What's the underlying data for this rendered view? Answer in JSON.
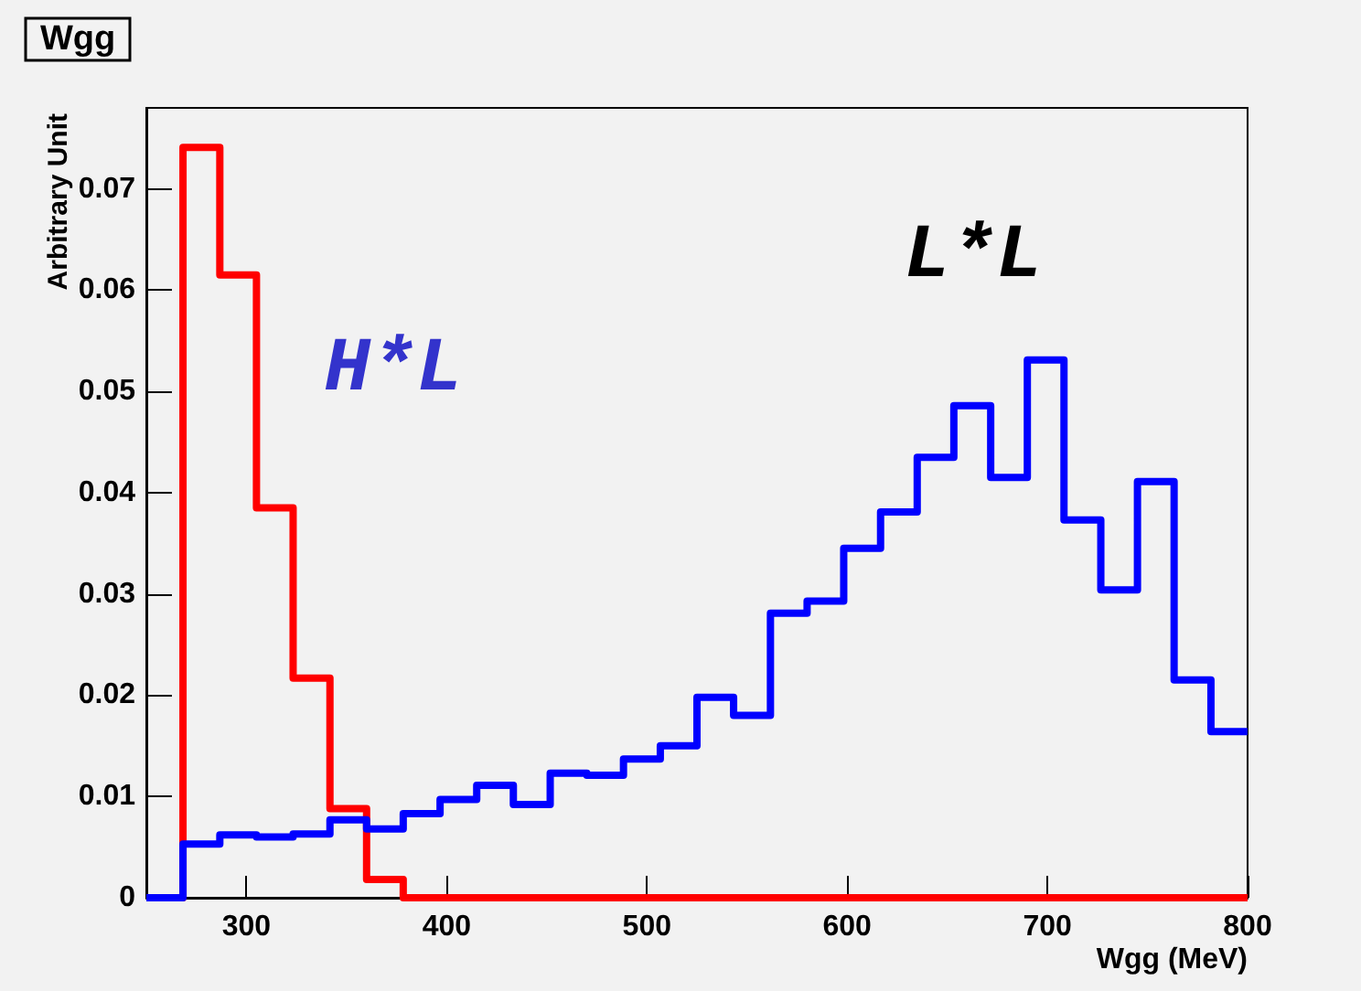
{
  "chart_data": {
    "type": "histogram",
    "title": "Wgg",
    "xlabel": "Wgg (MeV)",
    "ylabel": "Arbitrary Unit",
    "bins": [
      250,
      268.3,
      286.7,
      305,
      323.3,
      341.7,
      360,
      378.3,
      396.7,
      415,
      433.3,
      451.7,
      470,
      488.3,
      506.7,
      525,
      543.3,
      561.7,
      580,
      598.3,
      616.7,
      635,
      653.3,
      671.7,
      690,
      708.3,
      726.7,
      745,
      763.3,
      781.7,
      800
    ],
    "series": [
      {
        "color": "#ff0000",
        "values": [
          0,
          0.0741,
          0.0615,
          0.0385,
          0.0217,
          0.0088,
          0.0018,
          0,
          0,
          0,
          0,
          0,
          0,
          0,
          0,
          0,
          0,
          0,
          0,
          0,
          0,
          0,
          0,
          0,
          0,
          0,
          0,
          0,
          0,
          0
        ]
      },
      {
        "color": "#0000ff",
        "values": [
          0,
          0.0053,
          0.0062,
          0.006,
          0.0063,
          0.0077,
          0.0068,
          0.0083,
          0.0097,
          0.0111,
          0.0092,
          0.0123,
          0.0121,
          0.0137,
          0.015,
          0.0198,
          0.018,
          0.0281,
          0.0293,
          0.0345,
          0.0381,
          0.0435,
          0.0486,
          0.0415,
          0.0531,
          0.0373,
          0.0304,
          0.0411,
          0.0215,
          0.0164
        ]
      }
    ],
    "annotations": [
      "H*L",
      "L*L"
    ],
    "xlim": [
      250,
      800
    ],
    "xticks": [
      300,
      400,
      500,
      600,
      700,
      800
    ],
    "ylim": [
      0,
      0.078
    ],
    "yticks": [
      0,
      {
        "value": 0.01,
        "label": "0.01"
      },
      {
        "value": 0.02,
        "label": "0.02"
      },
      {
        "value": 0.03,
        "label": "0.03"
      },
      {
        "value": 0.04,
        "label": "0.04"
      },
      {
        "value": 0.05,
        "label": "0.05"
      },
      {
        "value": 0.06,
        "label": "0.06"
      },
      {
        "value": 0.07,
        "label": "0.07"
      }
    ],
    "grid": false
  }
}
